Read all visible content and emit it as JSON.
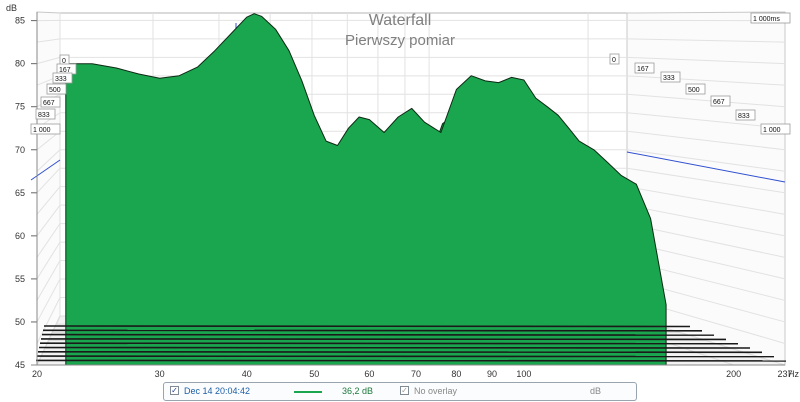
{
  "chart_data": {
    "type": "area",
    "title": "Waterfall",
    "subtitle": "Pierwszy pomiar",
    "y_unit": "dB",
    "x_unit": "Hz",
    "y_ticks": [
      "85",
      "80",
      "75",
      "70",
      "65",
      "60",
      "55",
      "50",
      "45"
    ],
    "y_range": [
      45,
      86
    ],
    "x_ticks": [
      "20",
      "30",
      "40",
      "50",
      "60",
      "70",
      "80",
      "90",
      "100",
      "200",
      "237"
    ],
    "x_range": [
      20,
      237
    ],
    "x_scale": "log",
    "time_corner_label": "1 000ms",
    "time_labels_left": [
      "0",
      "167",
      "333",
      "500",
      "667",
      "833",
      "1 000"
    ],
    "time_labels_right": [
      "0",
      "167",
      "333",
      "500",
      "667",
      "833",
      "1 000"
    ],
    "time_slice_count": 18,
    "front_slice_db": {
      "x": [
        22,
        24,
        26,
        28,
        30,
        32,
        34,
        36,
        38,
        40,
        41,
        42,
        44,
        46,
        48,
        50,
        52,
        54,
        56,
        58,
        60,
        63,
        66,
        69,
        72,
        76,
        80,
        84,
        88,
        92,
        96,
        100,
        104,
        108,
        112,
        116,
        120,
        126,
        132,
        138,
        145,
        152,
        160
      ],
      "y": [
        80.0,
        80.0,
        79.5,
        78.8,
        78.3,
        78.6,
        79.6,
        81.5,
        83.5,
        85.4,
        85.8,
        85.5,
        84.0,
        81.5,
        78.0,
        74.0,
        71.0,
        70.5,
        72.5,
        73.8,
        73.5,
        72.0,
        73.8,
        74.8,
        73.2,
        72.0,
        77.0,
        78.6,
        78.0,
        77.8,
        78.4,
        78.1,
        76.0,
        75.0,
        74.0,
        72.5,
        71.0,
        70.0,
        68.5,
        67.0,
        66.0,
        62.0,
        52.0
      ]
    },
    "fill_color": "#1aa64f",
    "edge_color": "#0d2a14",
    "legend": {
      "checked": true,
      "measurement_label": "Dec 14 20:04:42",
      "line_color": "#1aa64f",
      "level": "36,2 dB",
      "overlay_checked": true,
      "overlay_label": "No overlay",
      "overlay_unit": "dB"
    }
  }
}
